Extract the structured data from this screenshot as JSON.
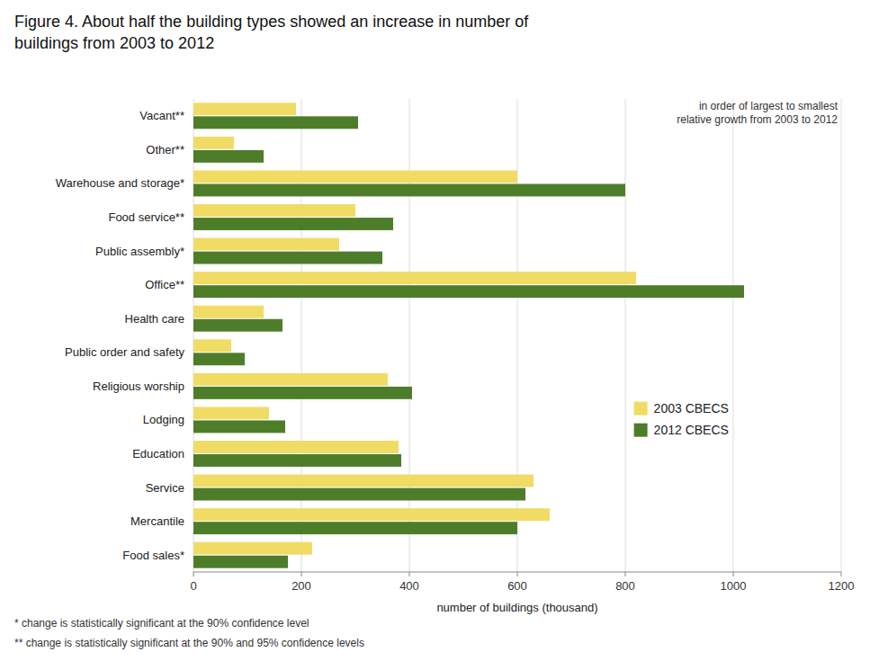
{
  "chart_data": {
    "type": "bar",
    "orientation": "horizontal",
    "title": "Figure 4. About half the building types showed an increase in number of\nbuildings from 2003 to 2012",
    "categories": [
      "Vacant**",
      "Other**",
      "Warehouse and storage*",
      "Food service**",
      "Public assembly*",
      "Office**",
      "Health care",
      "Public order and safety",
      "Religious worship",
      "Lodging",
      "Education",
      "Service",
      "Mercantile",
      "Food sales*"
    ],
    "series": [
      {
        "name": "2003 CBECS",
        "color": "#f0dc64",
        "values": [
          190,
          75,
          600,
          300,
          270,
          820,
          130,
          70,
          360,
          140,
          380,
          630,
          660,
          220
        ]
      },
      {
        "name": "2012 CBECS",
        "color": "#4e7d2a",
        "values": [
          305,
          130,
          800,
          370,
          350,
          1020,
          165,
          95,
          405,
          170,
          385,
          615,
          600,
          175
        ]
      }
    ],
    "x_label": "number of buildings  (thousand)",
    "xlim": [
      0,
      1200
    ],
    "xticks": [
      0,
      200,
      400,
      600,
      800,
      1000,
      1200
    ],
    "grid": true,
    "legend": "lower right",
    "annotations": [
      "in order of largest to smallest\nrelative growth from 2003 to 2012",
      "* change is statistically significant at the 90% confidence level",
      "** change is statistically significant at the 90% and 95% confidence levels"
    ]
  }
}
